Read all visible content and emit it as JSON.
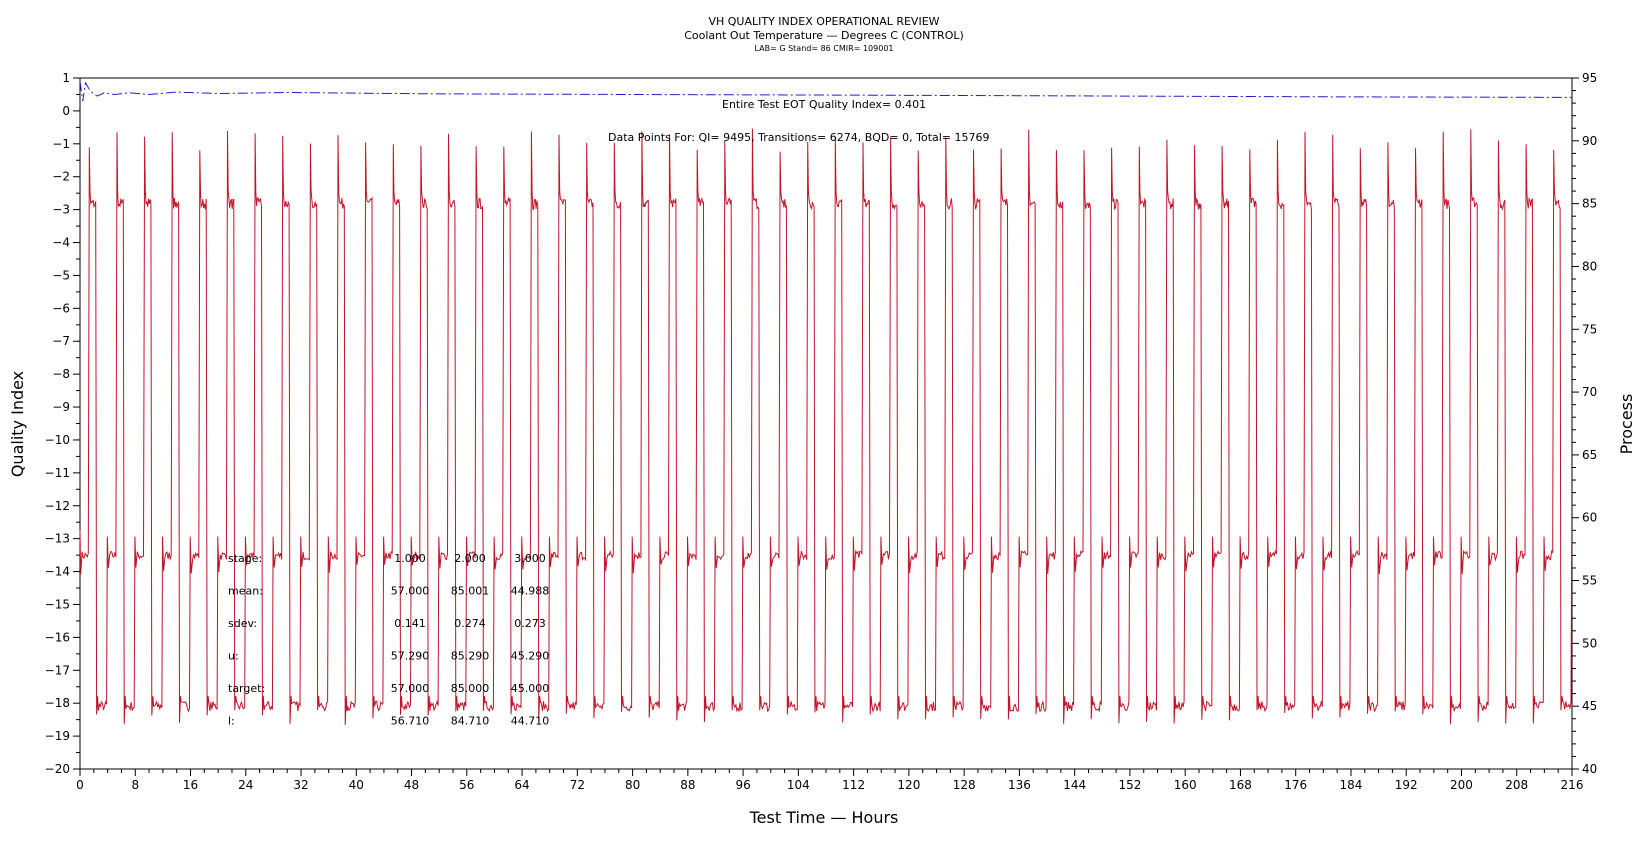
{
  "chart_data": {
    "type": "line",
    "title": "VH QUALITY INDEX OPERATIONAL REVIEW",
    "subtitle": "Coolant Out Temperature — Degrees C (CONTROL)",
    "subtitle2": "LAB= G Stand= 86 CMIR= 109001",
    "xlabel": "Test Time — Hours",
    "ylabel_left": "Quality Index",
    "ylabel_right": "Process",
    "xlim": [
      0,
      216
    ],
    "ylim_left": [
      -20,
      1
    ],
    "ylim_right": [
      40,
      95
    ],
    "x_ticks": [
      "0",
      "8",
      "16",
      "24",
      "32",
      "40",
      "48",
      "56",
      "64",
      "72",
      "80",
      "88",
      "96",
      "104",
      "112",
      "120",
      "128",
      "136",
      "144",
      "152",
      "160",
      "168",
      "176",
      "184",
      "192",
      "200",
      "208",
      "216"
    ],
    "y_left_ticks": [
      "1",
      "0",
      "−1",
      "−2",
      "−3",
      "−4",
      "−5",
      "−6",
      "−7",
      "−8",
      "−9",
      "−10",
      "−11",
      "−12",
      "−13",
      "−14",
      "−15",
      "−16",
      "−17",
      "−18",
      "−19",
      "−20"
    ],
    "y_right_ticks": [
      "95",
      "90",
      "85",
      "80",
      "75",
      "70",
      "65",
      "60",
      "55",
      "50",
      "45",
      "40"
    ],
    "annotations": {
      "quality_index": "Entire Test EOT Quality Index=   0.401",
      "data_points": "Data Points For: QI=  9495, Transitions=  6274, BQD=     0, Total= 15769"
    },
    "stats_table": {
      "rows": [
        {
          "label": "stage:",
          "values": [
            "1.000",
            "2.000",
            "3.000"
          ]
        },
        {
          "label": "mean:",
          "values": [
            "57.000",
            "85.001",
            "44.988"
          ]
        },
        {
          "label": "sdev:",
          "values": [
            "0.141",
            "0.274",
            "0.273"
          ]
        },
        {
          "label": "u:",
          "values": [
            "57.290",
            "85.290",
            "45.290"
          ]
        },
        {
          "label": "target:",
          "values": [
            "57.000",
            "85.000",
            "45.000"
          ]
        },
        {
          "label": "l:",
          "values": [
            "56.710",
            "84.710",
            "44.710"
          ]
        }
      ]
    },
    "grid": false,
    "series": [
      {
        "axis": "left",
        "color": "#1f1fd0",
        "style": "dash-dot",
        "points": [
          [
            0,
            0.9
          ],
          [
            0.4,
            0.3
          ],
          [
            0.8,
            0.85
          ],
          [
            1.5,
            0.6
          ],
          [
            2.5,
            0.45
          ],
          [
            3.5,
            0.55
          ],
          [
            5,
            0.5
          ],
          [
            7,
            0.55
          ],
          [
            10,
            0.5
          ],
          [
            14,
            0.57
          ],
          [
            20,
            0.53
          ],
          [
            30,
            0.56
          ],
          [
            50,
            0.52
          ],
          [
            80,
            0.5
          ],
          [
            110,
            0.48
          ],
          [
            140,
            0.46
          ],
          [
            180,
            0.43
          ],
          [
            216,
            0.41
          ]
        ]
      },
      {
        "axis": "right",
        "color": "#c0152a",
        "style": "solid",
        "cycle": {
          "period_hours": 4,
          "stage_values": [
            57,
            85,
            45
          ],
          "peak_high": 91,
          "dip_low": 43.5,
          "overshoot_low": 55.5
        }
      }
    ]
  }
}
